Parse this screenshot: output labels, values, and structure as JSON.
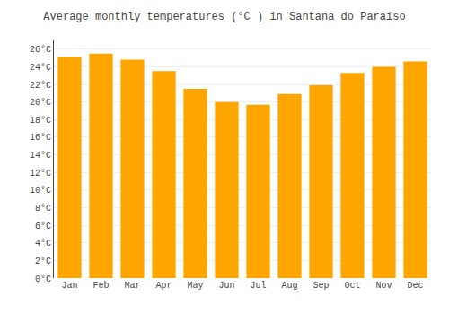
{
  "chart_data": {
    "type": "bar",
    "title": "Average monthly temperatures (°C ) in Santana do Paraíso",
    "categories": [
      "Jan",
      "Feb",
      "Mar",
      "Apr",
      "May",
      "Jun",
      "Jul",
      "Aug",
      "Sep",
      "Oct",
      "Nov",
      "Dec"
    ],
    "values": [
      25.1,
      25.5,
      24.8,
      23.5,
      21.5,
      20.0,
      19.7,
      20.9,
      21.9,
      23.3,
      24.0,
      24.6
    ],
    "color": "#FFA500",
    "ylim": [
      0,
      27
    ],
    "yticks": [
      {
        "value": 0,
        "label": "0°C"
      },
      {
        "value": 2,
        "label": "2°C"
      },
      {
        "value": 4,
        "label": "4°C"
      },
      {
        "value": 6,
        "label": "6°C"
      },
      {
        "value": 8,
        "label": "8°C"
      },
      {
        "value": 10,
        "label": "10°C"
      },
      {
        "value": 12,
        "label": "12°C"
      },
      {
        "value": 14,
        "label": "14°C"
      },
      {
        "value": 16,
        "label": "16°C"
      },
      {
        "value": 18,
        "label": "18°C"
      },
      {
        "value": 20,
        "label": "20°C"
      },
      {
        "value": 22,
        "label": "22°C"
      },
      {
        "value": 24,
        "label": "24°C"
      },
      {
        "value": 26,
        "label": "26°C"
      }
    ],
    "grid": true
  }
}
